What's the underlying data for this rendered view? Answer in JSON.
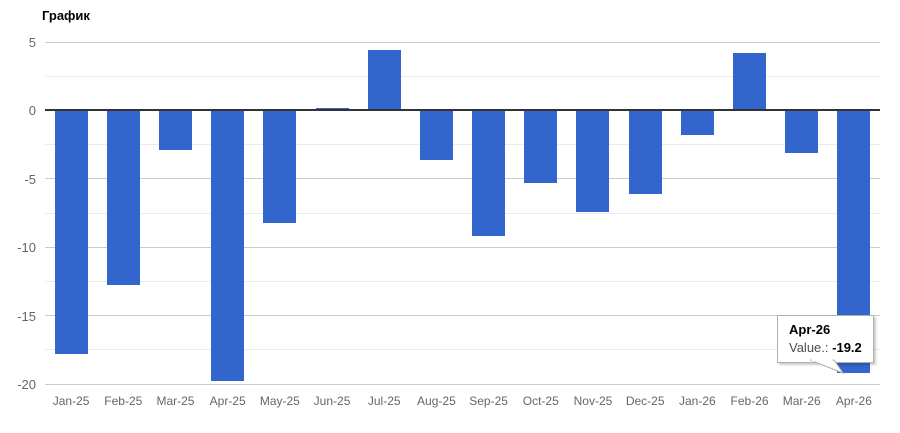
{
  "title": "График",
  "tooltip": {
    "category": "Apr-26",
    "value_label": "Value.:",
    "value_text": "-19.2"
  },
  "colors": {
    "bar": "#3366cc",
    "zero_line": "#333333",
    "major_gridline": "#cccccc",
    "minor_gridline": "#ebebeb",
    "axis_text": "#666666",
    "title_text": "#000000",
    "tooltip_border": "#b0b0b0"
  },
  "chart_data": {
    "type": "bar",
    "title": "График",
    "categories": [
      "Jan-25",
      "Feb-25",
      "Mar-25",
      "Apr-25",
      "May-25",
      "Jun-25",
      "Jul-25",
      "Aug-25",
      "Sep-25",
      "Oct-25",
      "Nov-25",
      "Dec-25",
      "Jan-26",
      "Feb-26",
      "Mar-26",
      "Apr-26"
    ],
    "values": [
      -17.8,
      -12.8,
      -2.9,
      -19.8,
      -8.2,
      0.2,
      4.4,
      -3.6,
      -9.2,
      -5.3,
      -7.4,
      -6.1,
      -1.8,
      4.2,
      -3.1,
      -19.2
    ],
    "xlabel": "",
    "ylabel": "",
    "ylim": [
      -20,
      5
    ],
    "y_major_ticks": [
      5,
      0,
      -5,
      -10,
      -15,
      -20
    ],
    "y_minor_ticks": [
      2.5,
      -2.5,
      -7.5,
      -12.5,
      -17.5
    ],
    "grid": true,
    "legend": "none",
    "bar_color": "#3366cc",
    "tooltip": {
      "category": "Apr-26",
      "value_label": "Value.:",
      "value": -19.2
    }
  }
}
